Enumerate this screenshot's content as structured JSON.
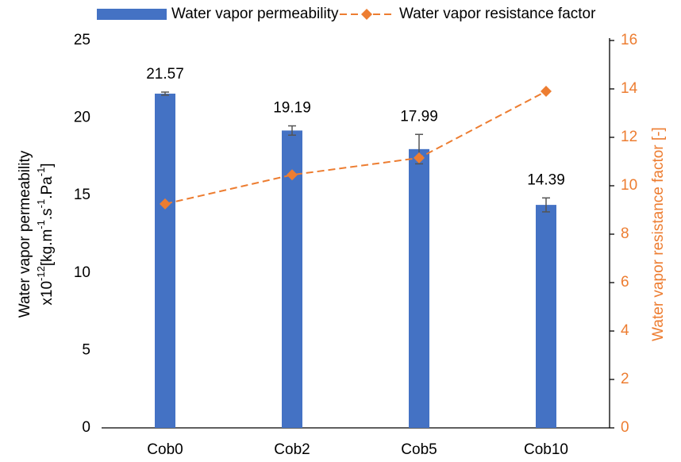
{
  "chart_data": {
    "type": "bar-line",
    "categories": [
      "Cob0",
      "Cob2",
      "Cob5",
      "Cob10"
    ],
    "series": [
      {
        "name": "Water vapor permeability",
        "type": "bar",
        "color": "#4472c4",
        "values": [
          21.57,
          19.19,
          17.99,
          14.39
        ],
        "errors": [
          0.1,
          0.3,
          0.95,
          0.45
        ]
      },
      {
        "name": "Water vapor resistance factor",
        "type": "line",
        "axis": "y2",
        "color": "#ed7d31",
        "values": [
          9.25,
          10.45,
          11.15,
          13.9
        ]
      }
    ],
    "ylabel": {
      "line1": "Water vapor permeability",
      "line2": [
        {
          "text": "x10"
        },
        {
          "text": "-12",
          "sup": true
        },
        {
          "text": "[kg.m"
        },
        {
          "text": "-1",
          "sup": true
        },
        {
          "text": ".s"
        },
        {
          "text": "-1",
          "sup": true
        },
        {
          "text": ".Pa"
        },
        {
          "text": "-1",
          "sup": true
        },
        {
          "text": "]"
        }
      ]
    },
    "y2label": "Water vapor resistance factor [-]",
    "ylim": [
      0,
      25
    ],
    "yticks": [
      0,
      5,
      10,
      15,
      20,
      25
    ],
    "y2lim": [
      0,
      16
    ],
    "y2ticks": [
      0,
      2,
      4,
      6,
      8,
      10,
      12,
      14,
      16
    ],
    "legend": "top"
  }
}
